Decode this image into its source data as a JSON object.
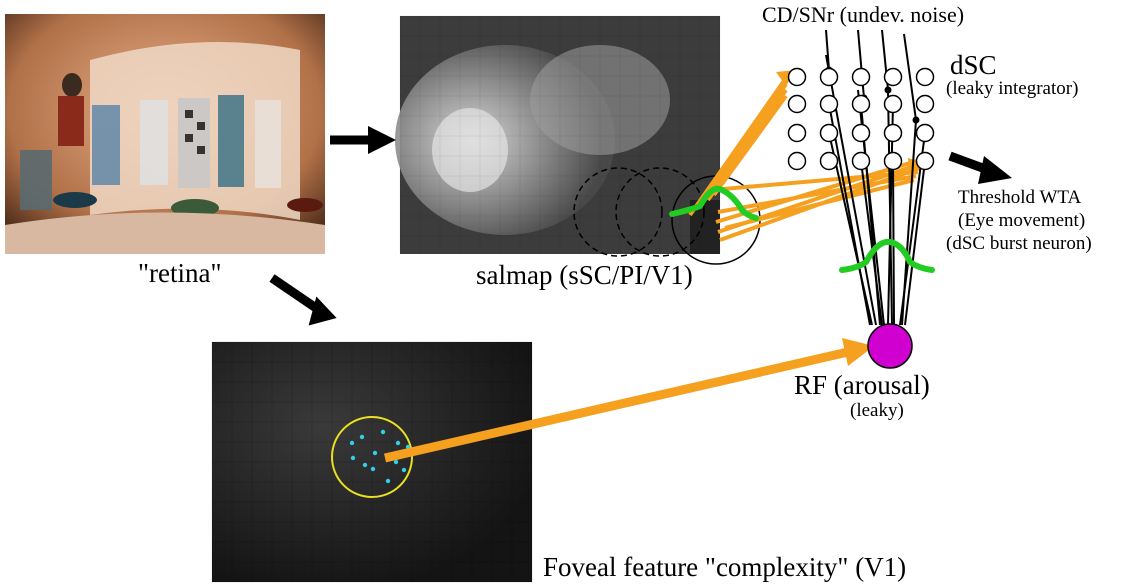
{
  "labels": {
    "retina": "\"retina\"",
    "salmap": "salmap (sSC/PI/V1)",
    "cdsnr": "CD/SNr (undev. noise)",
    "dsc": "dSC",
    "dsc_sub": "(leaky integrator)",
    "wta_line1": "Threshold WTA",
    "wta_line2": "(Eye movement)",
    "wta_line3": "(dSC burst neuron)",
    "rf": "RF (arousal)",
    "rf_sub": "(leaky)",
    "foveal": "Foveal feature \"complexity\" (V1)"
  },
  "colors": {
    "orange": "#F5A01E",
    "green": "#22CC22",
    "magenta": "#D000D0",
    "yellow": "#E8E020",
    "cyan": "#30D0E8"
  }
}
